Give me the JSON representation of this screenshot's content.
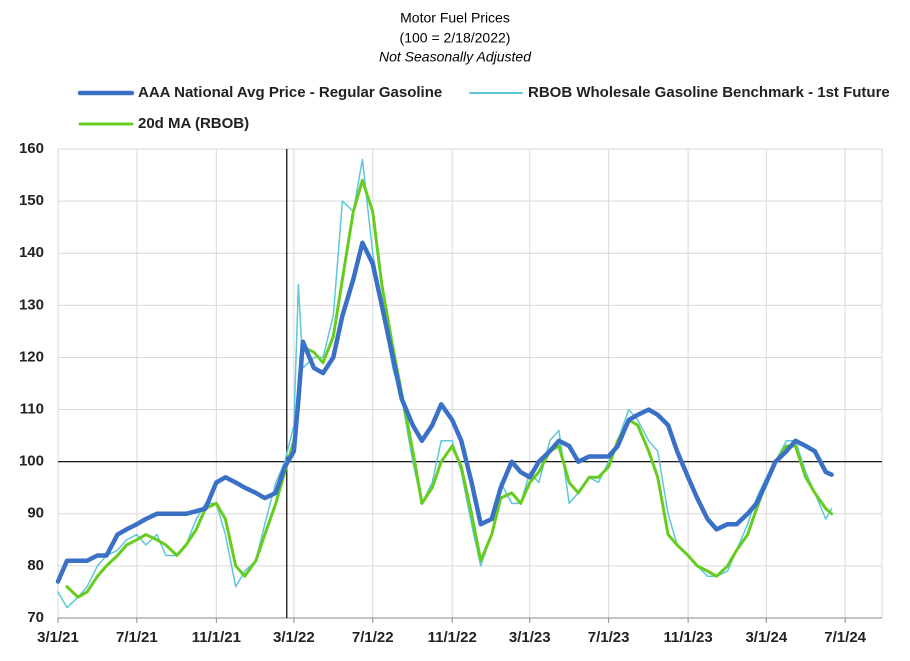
{
  "chart_data": {
    "type": "line",
    "title": "Motor Fuel Prices",
    "subtitle": "(100 = 2/18/2022)",
    "note": "Not Seasonally Adjusted",
    "x": [
      "2021-03-01",
      "2021-03-15",
      "2021-04-01",
      "2021-04-15",
      "2021-05-01",
      "2021-05-15",
      "2021-06-01",
      "2021-06-15",
      "2021-07-01",
      "2021-07-15",
      "2021-08-01",
      "2021-08-15",
      "2021-09-01",
      "2021-09-15",
      "2021-10-01",
      "2021-10-15",
      "2021-11-01",
      "2021-11-15",
      "2021-12-01",
      "2021-12-15",
      "2022-01-01",
      "2022-01-15",
      "2022-02-01",
      "2022-02-15",
      "2022-03-01",
      "2022-03-08",
      "2022-03-15",
      "2022-04-01",
      "2022-04-15",
      "2022-05-01",
      "2022-05-15",
      "2022-06-01",
      "2022-06-15",
      "2022-07-01",
      "2022-07-15",
      "2022-08-01",
      "2022-08-15",
      "2022-09-01",
      "2022-09-15",
      "2022-10-01",
      "2022-10-15",
      "2022-11-01",
      "2022-11-15",
      "2022-12-01",
      "2022-12-15",
      "2023-01-01",
      "2023-01-15",
      "2023-02-01",
      "2023-02-15",
      "2023-03-01",
      "2023-03-15",
      "2023-04-01",
      "2023-04-15",
      "2023-05-01",
      "2023-05-15",
      "2023-06-01",
      "2023-06-15",
      "2023-07-01",
      "2023-07-15",
      "2023-08-01",
      "2023-08-15",
      "2023-09-01",
      "2023-09-15",
      "2023-10-01",
      "2023-10-15",
      "2023-11-01",
      "2023-11-15",
      "2023-12-01",
      "2023-12-15",
      "2024-01-01",
      "2024-01-15",
      "2024-02-01",
      "2024-02-15",
      "2024-03-01",
      "2024-03-15",
      "2024-04-01",
      "2024-04-15",
      "2024-05-01",
      "2024-05-15",
      "2024-06-01",
      "2024-06-10"
    ],
    "series": [
      {
        "name": "AAA National Avg Price - Regular Gasoline",
        "color": "#3a70c6",
        "width": 4.5,
        "values": [
          77,
          81,
          81,
          81,
          82,
          82,
          86,
          87,
          88,
          89,
          90,
          90,
          90,
          90,
          90.5,
          91,
          96,
          97,
          96,
          95,
          94,
          93,
          94,
          99,
          102,
          112,
          123,
          118,
          117,
          120,
          128,
          135,
          142,
          138,
          130,
          120,
          112,
          107,
          104,
          107,
          111,
          108,
          104,
          96,
          88,
          89,
          95,
          100,
          98,
          97,
          100,
          102,
          104,
          103,
          100,
          101,
          101,
          101,
          103,
          108,
          109,
          110,
          109,
          107,
          102,
          97,
          93,
          89,
          87,
          88,
          88,
          90,
          92,
          96,
          100,
          102,
          104,
          103,
          102,
          98,
          97.5
        ]
      },
      {
        "name": "RBOB Wholesale Gasoline Benchmark - 1st Future",
        "color": "#5cc8da",
        "width": 1.5,
        "values": [
          75,
          72,
          74,
          76,
          80,
          82,
          83,
          85,
          86,
          84,
          86,
          82,
          82,
          84,
          89,
          92,
          92,
          86,
          76,
          79,
          81,
          88,
          96,
          100,
          107,
          134,
          118,
          120,
          120,
          128,
          150,
          148,
          158,
          140,
          130,
          118,
          112,
          100,
          92,
          96,
          104,
          104,
          98,
          88,
          80,
          86,
          96,
          92,
          92,
          98,
          96,
          104,
          106,
          92,
          94,
          97,
          96,
          100,
          104,
          110,
          108,
          104,
          102,
          90,
          84,
          82,
          80,
          78,
          78,
          79,
          83,
          88,
          93,
          97,
          100,
          104,
          104,
          98,
          94,
          89,
          91
        ]
      },
      {
        "name": "20d MA (RBOB)",
        "color": "#66cc1e",
        "width": 3,
        "values": [
          null,
          76,
          74,
          75,
          78,
          80,
          82,
          84,
          85,
          86,
          85,
          84,
          82,
          84,
          87,
          91,
          92,
          89,
          80,
          78,
          81,
          86,
          92,
          98,
          104,
          110,
          122,
          121,
          119,
          124,
          135,
          148,
          154,
          148,
          134,
          122,
          113,
          102,
          92,
          95,
          100,
          103,
          99,
          90,
          81,
          86,
          93,
          94,
          92,
          96,
          98,
          102,
          103,
          96,
          94,
          97,
          97,
          99,
          104,
          108,
          107,
          102,
          97,
          86,
          84,
          82,
          80,
          79,
          78,
          80,
          83,
          86,
          91,
          96,
          100,
          103,
          103,
          97,
          94,
          91,
          90
        ]
      }
    ],
    "xlim": [
      "2021-03-01",
      "2024-08-27"
    ],
    "xticks": [
      {
        "value": "2021-03-01",
        "label": "3/1/21"
      },
      {
        "value": "2021-07-01",
        "label": "7/1/21"
      },
      {
        "value": "2021-11-01",
        "label": "11/1/21"
      },
      {
        "value": "2022-03-01",
        "label": "3/1/22"
      },
      {
        "value": "2022-07-01",
        "label": "7/1/22"
      },
      {
        "value": "2022-11-01",
        "label": "11/1/22"
      },
      {
        "value": "2023-03-01",
        "label": "3/1/23"
      },
      {
        "value": "2023-07-01",
        "label": "7/1/23"
      },
      {
        "value": "2023-11-01",
        "label": "11/1/23"
      },
      {
        "value": "2024-03-01",
        "label": "3/1/24"
      },
      {
        "value": "2024-07-01",
        "label": "7/1/24"
      }
    ],
    "ylim": [
      70,
      160
    ],
    "yticks": [
      70,
      80,
      90,
      100,
      110,
      120,
      130,
      140,
      150,
      160
    ],
    "grid": true,
    "ref_x": "2022-02-18",
    "ref_y": 100,
    "legend": "top"
  }
}
